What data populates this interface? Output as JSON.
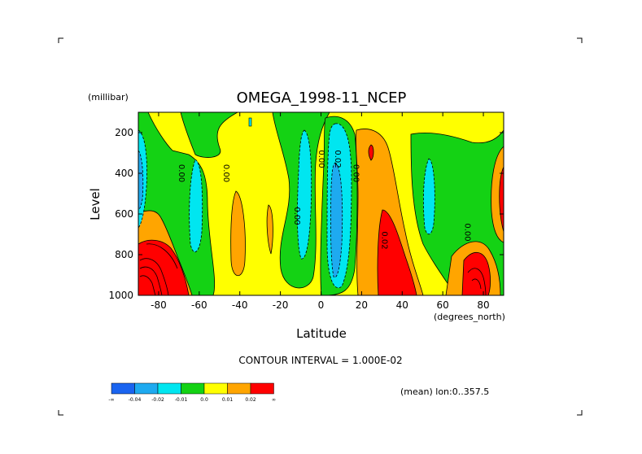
{
  "chart_data": {
    "type": "heatmap",
    "title": "OMEGA_1998-11_NCEP",
    "xlabel": "Latitude",
    "x_units": "(degrees_north)",
    "ylabel": "Level",
    "y_units": "(millibar)",
    "xlim": [
      -90,
      90
    ],
    "ylim": [
      1000,
      100
    ],
    "x_ticks": [
      -80,
      -60,
      -40,
      -20,
      0,
      20,
      40,
      60,
      80
    ],
    "y_ticks": [
      200,
      400,
      600,
      800,
      1000
    ],
    "contour_interval_text": "CONTOUR INTERVAL = 1.000E-02",
    "subset_text": "(mean) lon:0..357.5",
    "contour_labels": [
      {
        "text": "0.00",
        "x": -70,
        "y": 400
      },
      {
        "text": "0.00",
        "x": -48,
        "y": 400
      },
      {
        "text": "0.00",
        "x": -13,
        "y": 610
      },
      {
        "text": "0.00",
        "x": -1,
        "y": 330
      },
      {
        "text": "0.02",
        "x": 7,
        "y": 330
      },
      {
        "text": "0.00",
        "x": 16,
        "y": 400
      },
      {
        "text": "0.02",
        "x": 30,
        "y": 730
      },
      {
        "text": "0.00",
        "x": 71,
        "y": 690
      }
    ],
    "legend": {
      "colors": [
        "#1a64f0",
        "#1eaaf0",
        "#00e6f0",
        "#14d214",
        "#ffff00",
        "#ffa500",
        "#ff0000"
      ],
      "labels": [
        "-∞",
        "-0.04",
        "-0.02",
        "-0.01",
        "0.0",
        "0.01",
        "0.02",
        "∞"
      ]
    }
  }
}
